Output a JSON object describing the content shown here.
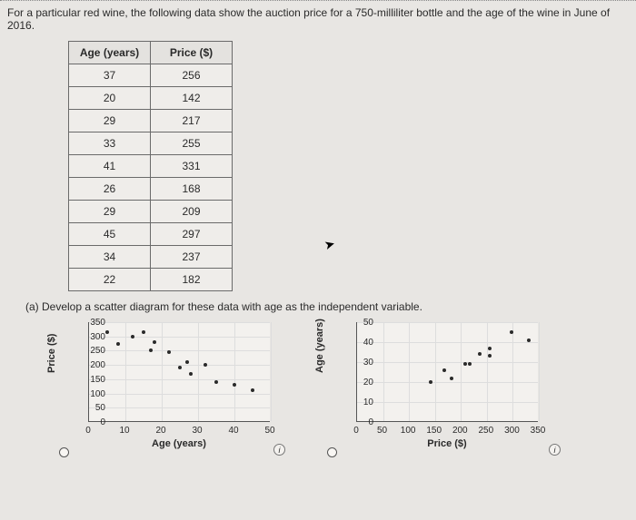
{
  "intro_text": "For a particular red wine, the following data show the auction price for a 750-milliliter bottle and the age of the wine in June of 2016.",
  "table": {
    "columns": [
      "Age (years)",
      "Price ($)"
    ],
    "rows": [
      [
        37,
        256
      ],
      [
        20,
        142
      ],
      [
        29,
        217
      ],
      [
        33,
        255
      ],
      [
        41,
        331
      ],
      [
        26,
        168
      ],
      [
        29,
        209
      ],
      [
        45,
        297
      ],
      [
        34,
        237
      ],
      [
        22,
        182
      ]
    ]
  },
  "question_a": "(a)  Develop a scatter diagram for these data with age as the independent variable.",
  "chart_left": {
    "type": "scatter",
    "xlabel": "Age (years)",
    "ylabel": "Price ($)",
    "xlim": [
      0,
      50
    ],
    "xtick_step": 10,
    "ylim": [
      0,
      350
    ],
    "ytick_step": 50,
    "background_color": "#f3f1ee",
    "grid_color": "#ddd",
    "point_color": "#2a2a2a",
    "points": [
      [
        5,
        314
      ],
      [
        8,
        275
      ],
      [
        12,
        298
      ],
      [
        15,
        315
      ],
      [
        17,
        250
      ],
      [
        18,
        280
      ],
      [
        22,
        245
      ],
      [
        25,
        190
      ],
      [
        27,
        210
      ],
      [
        28,
        170
      ],
      [
        32,
        200
      ],
      [
        35,
        140
      ],
      [
        40,
        130
      ],
      [
        45,
        110
      ]
    ]
  },
  "chart_right": {
    "type": "scatter",
    "xlabel": "Price ($)",
    "ylabel": "Age (years)",
    "xlim": [
      0,
      350
    ],
    "xtick_step": 50,
    "ylim": [
      0,
      50
    ],
    "ytick_step": 10,
    "background_color": "#f3f1ee",
    "grid_color": "#ddd",
    "point_color": "#2a2a2a",
    "points": [
      [
        142,
        20
      ],
      [
        168,
        26
      ],
      [
        182,
        22
      ],
      [
        209,
        29
      ],
      [
        217,
        29
      ],
      [
        237,
        34
      ],
      [
        255,
        33
      ],
      [
        256,
        37
      ],
      [
        297,
        45
      ],
      [
        331,
        41
      ]
    ]
  },
  "label_fontsize": 11,
  "tick_fontsize": 10
}
